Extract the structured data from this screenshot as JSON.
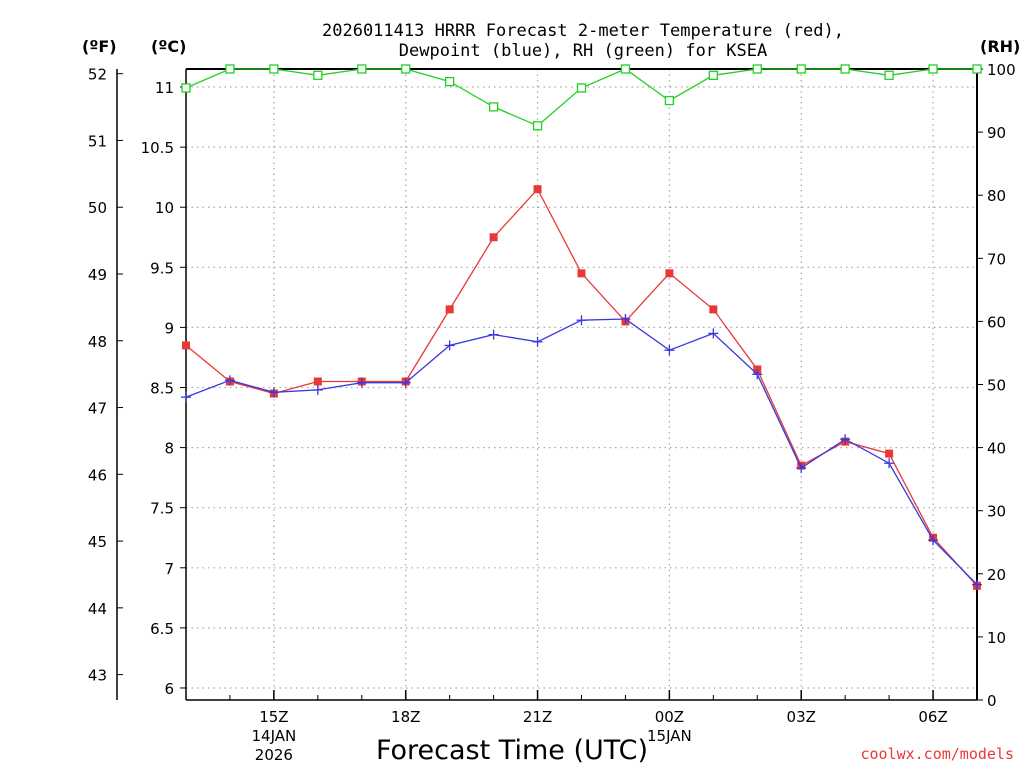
{
  "chart_data": {
    "type": "line",
    "title_line1": "2026011413 HRRR Forecast 2-meter Temperature (red),",
    "title_line2": "Dewpoint (blue), RH (green) for KSEA",
    "xlabel": "Forecast Time (UTC)",
    "credit": "coolwx.com/models",
    "unit_labels": {
      "fahrenheit": "(ºF)",
      "celsius": "(ºC)",
      "rh": "(RH)"
    },
    "x_hours": [
      13,
      14,
      15,
      16,
      17,
      18,
      19,
      20,
      21,
      22,
      23,
      24,
      25,
      26,
      27,
      28,
      29,
      30,
      31
    ],
    "x_ticks": [
      {
        "hour": 15,
        "label": "15Z",
        "sub1": "14JAN",
        "sub2": "2026"
      },
      {
        "hour": 18,
        "label": "18Z",
        "sub1": "",
        "sub2": ""
      },
      {
        "hour": 21,
        "label": "21Z",
        "sub1": "",
        "sub2": ""
      },
      {
        "hour": 24,
        "label": "00Z",
        "sub1": "15JAN",
        "sub2": ""
      },
      {
        "hour": 27,
        "label": "03Z",
        "sub1": "",
        "sub2": ""
      },
      {
        "hour": 30,
        "label": "06Z",
        "sub1": "",
        "sub2": ""
      }
    ],
    "xlim": [
      13,
      31
    ],
    "celsius_axis": {
      "ylim": [
        5.9,
        11.15
      ],
      "ticks": [
        6,
        6.5,
        7,
        7.5,
        8,
        8.5,
        9,
        9.5,
        10,
        10.5,
        11
      ],
      "tick_labels": [
        "6",
        "6.5",
        "7",
        "7.5",
        "8",
        "8.5",
        "9",
        "9.5",
        "10",
        "10.5",
        "11"
      ]
    },
    "fahrenheit_axis": {
      "ticks": [
        43,
        44,
        45,
        46,
        47,
        48,
        49,
        50,
        51,
        52
      ],
      "tick_labels": [
        "43",
        "44",
        "45",
        "46",
        "47",
        "48",
        "49",
        "50",
        "51",
        "52"
      ]
    },
    "rh_axis": {
      "ylim": [
        0,
        100
      ],
      "ticks": [
        0,
        10,
        20,
        30,
        40,
        50,
        60,
        70,
        80,
        90,
        100
      ],
      "tick_labels": [
        "0",
        "10",
        "20",
        "30",
        "40",
        "50",
        "60",
        "70",
        "80",
        "90",
        "100"
      ]
    },
    "series": [
      {
        "name": "Temperature",
        "axis": "celsius",
        "color": "#e83838",
        "marker": "square-filled",
        "values": [
          8.85,
          8.55,
          8.45,
          8.55,
          8.55,
          8.55,
          9.15,
          9.75,
          10.15,
          9.45,
          9.05,
          9.45,
          9.15,
          8.65,
          7.85,
          8.05,
          7.95,
          7.25,
          6.85
        ]
      },
      {
        "name": "Dewpoint",
        "axis": "celsius",
        "color": "#3838e0",
        "marker": "plus",
        "values": [
          8.42,
          8.56,
          8.46,
          8.48,
          8.54,
          8.54,
          8.85,
          8.94,
          8.88,
          9.06,
          9.07,
          8.81,
          8.95,
          8.61,
          7.83,
          8.07,
          7.87,
          7.23,
          6.86
        ]
      },
      {
        "name": "RH",
        "axis": "rh",
        "color": "#22d022",
        "marker": "square-open",
        "values": [
          97,
          100,
          100,
          99,
          100,
          100,
          98,
          94,
          91,
          97,
          100,
          95,
          99,
          100,
          100,
          100,
          99,
          100,
          100
        ]
      }
    ]
  }
}
